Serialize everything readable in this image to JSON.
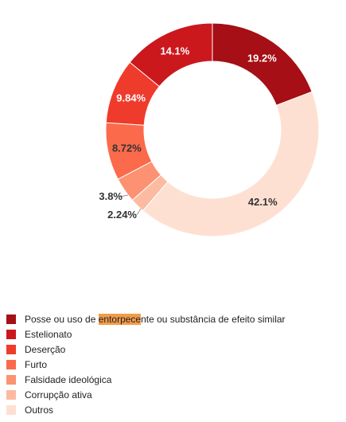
{
  "chart_data": {
    "type": "donut",
    "title": "",
    "slices": [
      {
        "label": "Posse ou uso de entorpecente ou substância de efeito similar",
        "label_parts": [
          "Posse ou uso de ",
          "entorpece",
          "nte ou substância de efeito similar"
        ],
        "value": 19.2,
        "value_label": "19.2%",
        "color": "#a50f15"
      },
      {
        "label": "Outros",
        "label_parts": [
          "Outros",
          "",
          ""
        ],
        "value": 42.1,
        "value_label": "42.1%",
        "color": "#fee0d2"
      },
      {
        "label": "Corrupção ativa",
        "label_parts": [
          "Corrupção ativa",
          "",
          ""
        ],
        "value": 2.24,
        "value_label": "2.24%",
        "color": "#fcbba1"
      },
      {
        "label": "Falsidade ideológica",
        "label_parts": [
          "Falsidade ideológica",
          "",
          ""
        ],
        "value": 3.8,
        "value_label": "3.8%",
        "color": "#fc9272"
      },
      {
        "label": "Furto",
        "label_parts": [
          "Furto",
          "",
          ""
        ],
        "value": 8.72,
        "value_label": "8.72%",
        "color": "#fb6a4a"
      },
      {
        "label": "Deserção",
        "label_parts": [
          "Deserção",
          "",
          ""
        ],
        "value": 9.84,
        "value_label": "9.84%",
        "color": "#ef3b2c"
      },
      {
        "label": "Estelionato",
        "label_parts": [
          "Estelionato",
          "",
          ""
        ],
        "value": 14.1,
        "value_label": "14.1%",
        "color": "#cb181d"
      }
    ],
    "legend": [
      {
        "parts": [
          "Posse ou uso de ",
          "entorpece",
          "nte ou substância de efeito similar"
        ],
        "color": "#a50f15"
      },
      {
        "parts": [
          "Estelionato",
          "",
          ""
        ],
        "color": "#cb181d"
      },
      {
        "parts": [
          "Deserção",
          "",
          ""
        ],
        "color": "#ef3b2c"
      },
      {
        "parts": [
          "Furto",
          "",
          ""
        ],
        "color": "#fb6a4a"
      },
      {
        "parts": [
          "Falsidade ideológica",
          "",
          ""
        ],
        "color": "#fc9272"
      },
      {
        "parts": [
          "Corrupção ativa",
          "",
          ""
        ],
        "color": "#fcbba1"
      },
      {
        "parts": [
          "Outros",
          "",
          ""
        ],
        "color": "#fee0d2"
      }
    ],
    "legend_position": "bottom-left",
    "highlight_color": "#f29b4a"
  }
}
